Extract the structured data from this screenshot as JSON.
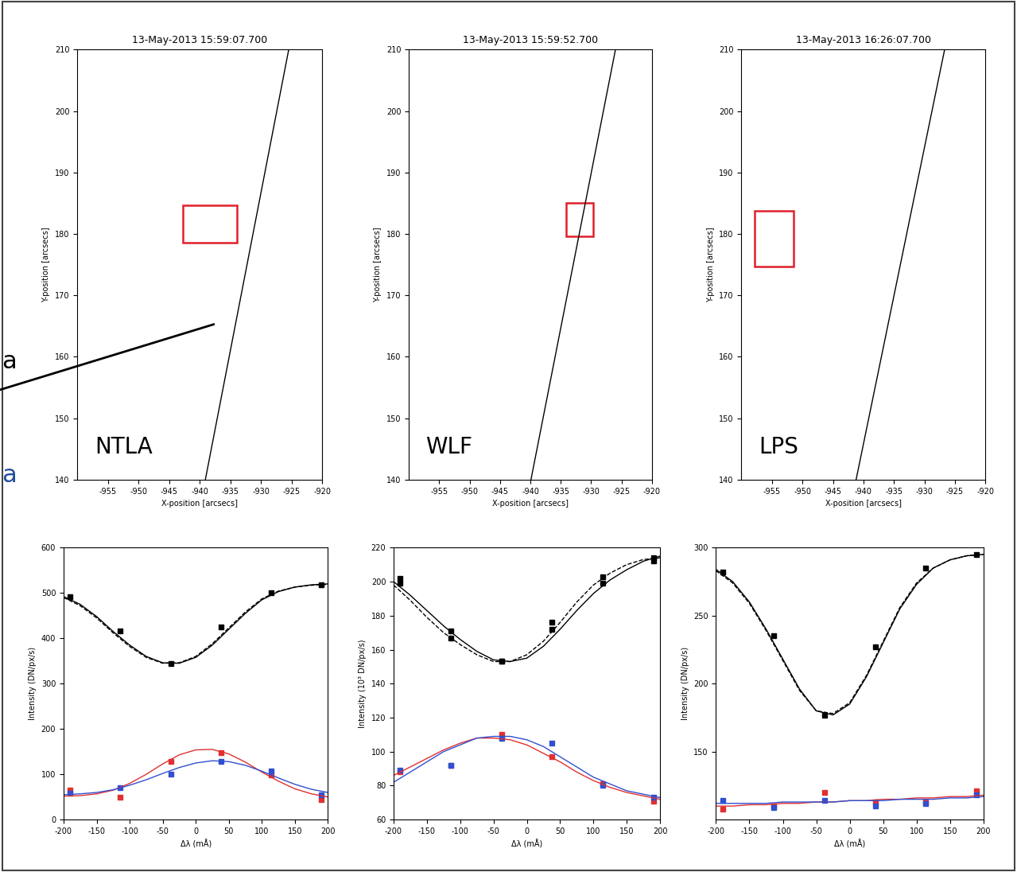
{
  "chart_data": [
    {
      "type": "image",
      "title": "13-May-2013 15:59:07.700",
      "label": "NTLA",
      "x_label": "X-position [arcsecs]",
      "y_label": "Y-position [arcsecs]",
      "xlim": [
        -960,
        -920
      ],
      "ylim": [
        140,
        210
      ],
      "xticks": [
        -955,
        -950,
        -945,
        -940,
        -935,
        -930,
        -925,
        -920
      ],
      "yticks": [
        140,
        150,
        160,
        170,
        180,
        190,
        200,
        210
      ],
      "limb": {
        "x": [
          -939.1,
          -925.5
        ],
        "y": [
          140,
          210
        ]
      },
      "box": {
        "x": [
          -942.8,
          -933.9
        ],
        "y": [
          178.6,
          184.7
        ],
        "color": "#e0202a"
      }
    },
    {
      "type": "image",
      "title": "13-May-2013 15:59:52.700",
      "label": "WLF",
      "x_label": "X-position [arcsecs]",
      "y_label": "Y-position [arcsecs]",
      "xlim": [
        -960,
        -920
      ],
      "ylim": [
        140,
        210
      ],
      "xticks": [
        -955,
        -950,
        -945,
        -940,
        -935,
        -930,
        -925,
        -920
      ],
      "yticks": [
        140,
        150,
        160,
        170,
        180,
        190,
        200,
        210
      ],
      "limb": {
        "x": [
          -939.9,
          -926.0
        ],
        "y": [
          140,
          210
        ]
      },
      "box": {
        "x": [
          -934.1,
          -929.6
        ],
        "y": [
          179.6,
          185.1
        ],
        "color": "#e0202a"
      }
    },
    {
      "type": "image",
      "title": "13-May-2013 16:26:07.700",
      "label": "LPS",
      "x_label": "X-position [arcsecs]",
      "y_label": "Y-position [arcsecs]",
      "xlim": [
        -960,
        -920
      ],
      "ylim": [
        140,
        210
      ],
      "xticks": [
        -955,
        -950,
        -945,
        -940,
        -935,
        -930,
        -925,
        -920
      ],
      "yticks": [
        140,
        150,
        160,
        170,
        180,
        190,
        200,
        210
      ],
      "limb": {
        "x": [
          -941.2,
          -926.7
        ],
        "y": [
          140,
          210
        ]
      },
      "box": {
        "x": [
          -957.8,
          -951.4
        ],
        "y": [
          174.7,
          183.8
        ],
        "color": "#e0202a"
      }
    },
    {
      "type": "line",
      "x_label": "Δλ (mÅ)",
      "y_label": "Intensity (DN/px/s)",
      "xlim": [
        -200,
        200
      ],
      "ylim": [
        0,
        600
      ],
      "xticks": [
        -200,
        -150,
        -100,
        -50,
        0,
        50,
        100,
        150,
        200
      ],
      "yticks": [
        0,
        100,
        200,
        300,
        400,
        500,
        600
      ],
      "x": [
        -190,
        -114,
        -38,
        38,
        114,
        190
      ],
      "series": [
        {
          "color": "#000000",
          "marker": "square",
          "values": [
            492,
            416,
            345,
            425,
            500,
            518
          ]
        },
        {
          "color": "#e03030",
          "marker": "square",
          "values": [
            65,
            50,
            128,
            148,
            98,
            45
          ]
        },
        {
          "color": "#3050d0",
          "marker": "square",
          "values": [
            58,
            70,
            100,
            128,
            108,
            55
          ]
        },
        {
          "color": "#000000",
          "line_style": "solid",
          "x": [
            -200,
            -175,
            -150,
            -125,
            -100,
            -75,
            -50,
            -25,
            0,
            25,
            50,
            75,
            100,
            125,
            150,
            175,
            200
          ],
          "values": [
            492,
            475,
            448,
            415,
            385,
            360,
            346,
            345,
            358,
            385,
            420,
            455,
            485,
            503,
            513,
            518,
            520
          ]
        },
        {
          "color": "#000000",
          "line_style": "dashed",
          "x": [
            -200,
            -175,
            -150,
            -125,
            -100,
            -75,
            -50,
            -25,
            0,
            25,
            50,
            75,
            100,
            125,
            150,
            175,
            200
          ],
          "values": [
            490,
            472,
            445,
            412,
            382,
            358,
            345,
            346,
            360,
            388,
            423,
            458,
            487,
            504,
            513,
            517,
            519
          ]
        },
        {
          "color": "#e03030",
          "line_style": "solid",
          "x": [
            -200,
            -175,
            -150,
            -125,
            -100,
            -75,
            -50,
            -25,
            0,
            25,
            50,
            75,
            100,
            125,
            150,
            175,
            200
          ],
          "values": [
            52,
            53,
            57,
            65,
            80,
            100,
            123,
            143,
            154,
            155,
            145,
            127,
            105,
            85,
            68,
            57,
            50
          ]
        },
        {
          "color": "#3050d0",
          "line_style": "solid",
          "x": [
            -200,
            -175,
            -150,
            -125,
            -100,
            -75,
            -50,
            -25,
            0,
            25,
            50,
            75,
            100,
            125,
            150,
            175,
            200
          ],
          "values": [
            55,
            57,
            60,
            66,
            76,
            88,
            102,
            115,
            125,
            130,
            128,
            120,
            107,
            92,
            78,
            67,
            60
          ]
        }
      ]
    },
    {
      "type": "line",
      "x_label": "Δλ (mÅ)",
      "y_label": "Intensity (10³ DN/px/s)",
      "xlim": [
        -200,
        200
      ],
      "ylim": [
        60,
        220
      ],
      "xticks": [
        -200,
        -150,
        -100,
        -50,
        0,
        50,
        100,
        150,
        200
      ],
      "yticks": [
        60,
        80,
        100,
        120,
        140,
        160,
        180,
        200,
        220
      ],
      "x": [
        -190,
        -114,
        -38,
        38,
        114,
        190
      ],
      "series": [
        {
          "color": "#000000",
          "marker": "square",
          "values": [
            202,
            171,
            153,
            176,
            203,
            214
          ]
        },
        {
          "color": "#000000",
          "marker": "square",
          "values": [
            199,
            167,
            153,
            172,
            199,
            212
          ]
        },
        {
          "color": "#e03030",
          "marker": "square",
          "values": [
            88,
            92,
            110,
            97,
            81,
            71
          ]
        },
        {
          "color": "#3050d0",
          "marker": "square",
          "values": [
            89,
            92,
            108,
            105,
            80,
            73
          ]
        },
        {
          "color": "#000000",
          "line_style": "solid",
          "x": [
            -200,
            -175,
            -150,
            -125,
            -100,
            -75,
            -50,
            -25,
            0,
            25,
            50,
            75,
            100,
            125,
            150,
            175,
            200
          ],
          "values": [
            200,
            192,
            183,
            174,
            166,
            159,
            154,
            153,
            155,
            162,
            172,
            183,
            193,
            201,
            207,
            212,
            215
          ]
        },
        {
          "color": "#000000",
          "line_style": "dashed",
          "x": [
            -200,
            -175,
            -150,
            -125,
            -100,
            -75,
            -50,
            -25,
            0,
            25,
            50,
            75,
            100,
            125,
            150,
            175,
            200
          ],
          "values": [
            198,
            189,
            179,
            170,
            163,
            157,
            153,
            153,
            157,
            165,
            176,
            188,
            198,
            205,
            210,
            213,
            214
          ]
        },
        {
          "color": "#e03030",
          "line_style": "solid",
          "x": [
            -200,
            -175,
            -150,
            -125,
            -100,
            -75,
            -50,
            -25,
            0,
            25,
            50,
            75,
            100,
            125,
            150,
            175,
            200
          ],
          "values": [
            86,
            91,
            96,
            101,
            105,
            108,
            108,
            107,
            104,
            99,
            94,
            88,
            83,
            79,
            76,
            74,
            72
          ]
        },
        {
          "color": "#3050d0",
          "line_style": "solid",
          "x": [
            -200,
            -175,
            -150,
            -125,
            -100,
            -75,
            -50,
            -25,
            0,
            25,
            50,
            75,
            100,
            125,
            150,
            175,
            200
          ],
          "values": [
            82,
            88,
            94,
            100,
            104,
            108,
            109,
            109,
            107,
            103,
            97,
            91,
            85,
            81,
            77,
            75,
            73
          ]
        }
      ]
    },
    {
      "type": "line",
      "x_label": "Δλ (mÅ)",
      "y_label": "Intensity (DN/px/s)",
      "xlim": [
        -200,
        200
      ],
      "ylim": [
        100,
        300
      ],
      "xticks": [
        -200,
        -150,
        -100,
        -50,
        0,
        50,
        100,
        150,
        200
      ],
      "yticks": [
        150,
        200,
        250,
        300
      ],
      "x": [
        -190,
        -114,
        -38,
        38,
        114,
        190
      ],
      "series": [
        {
          "color": "#000000",
          "marker": "square",
          "values": [
            282,
            235,
            177,
            227,
            285,
            295
          ]
        },
        {
          "color": "#e03030",
          "marker": "square",
          "values": [
            108,
            110,
            120,
            113,
            113,
            121
          ]
        },
        {
          "color": "#3050d0",
          "marker": "square",
          "values": [
            114,
            109,
            114,
            110,
            112,
            118
          ]
        },
        {
          "color": "#000000",
          "line_style": "solid",
          "x": [
            -200,
            -175,
            -150,
            -125,
            -100,
            -75,
            -50,
            -25,
            0,
            25,
            50,
            75,
            100,
            125,
            150,
            175,
            200
          ],
          "values": [
            284,
            275,
            260,
            240,
            218,
            196,
            180,
            177,
            185,
            205,
            230,
            255,
            273,
            285,
            291,
            294,
            295
          ]
        },
        {
          "color": "#000000",
          "line_style": "dashed",
          "x": [
            -200,
            -175,
            -150,
            -125,
            -100,
            -75,
            -50,
            -25,
            0,
            25,
            50,
            75,
            100,
            125,
            150,
            175,
            200
          ],
          "values": [
            283,
            274,
            259,
            239,
            217,
            195,
            180,
            178,
            186,
            206,
            231,
            256,
            274,
            285,
            291,
            294,
            295
          ]
        },
        {
          "color": "#e03030",
          "line_style": "solid",
          "x": [
            -200,
            -175,
            -150,
            -125,
            -100,
            -75,
            -50,
            -25,
            0,
            25,
            50,
            75,
            100,
            125,
            150,
            175,
            200
          ],
          "values": [
            110,
            110,
            111,
            111,
            112,
            112,
            113,
            113,
            114,
            114,
            115,
            115,
            116,
            116,
            117,
            117,
            118
          ]
        },
        {
          "color": "#3050d0",
          "line_style": "solid",
          "x": [
            -200,
            -175,
            -150,
            -125,
            -100,
            -75,
            -50,
            -25,
            0,
            25,
            50,
            75,
            100,
            125,
            150,
            175,
            200
          ],
          "values": [
            112,
            112,
            112,
            112,
            113,
            113,
            113,
            113,
            114,
            114,
            114,
            115,
            115,
            115,
            116,
            116,
            117
          ]
        }
      ]
    }
  ],
  "margin_texts": [
    {
      "text": "a",
      "color": "#000000"
    },
    {
      "text": "a",
      "color": "#1f4e9a"
    }
  ]
}
